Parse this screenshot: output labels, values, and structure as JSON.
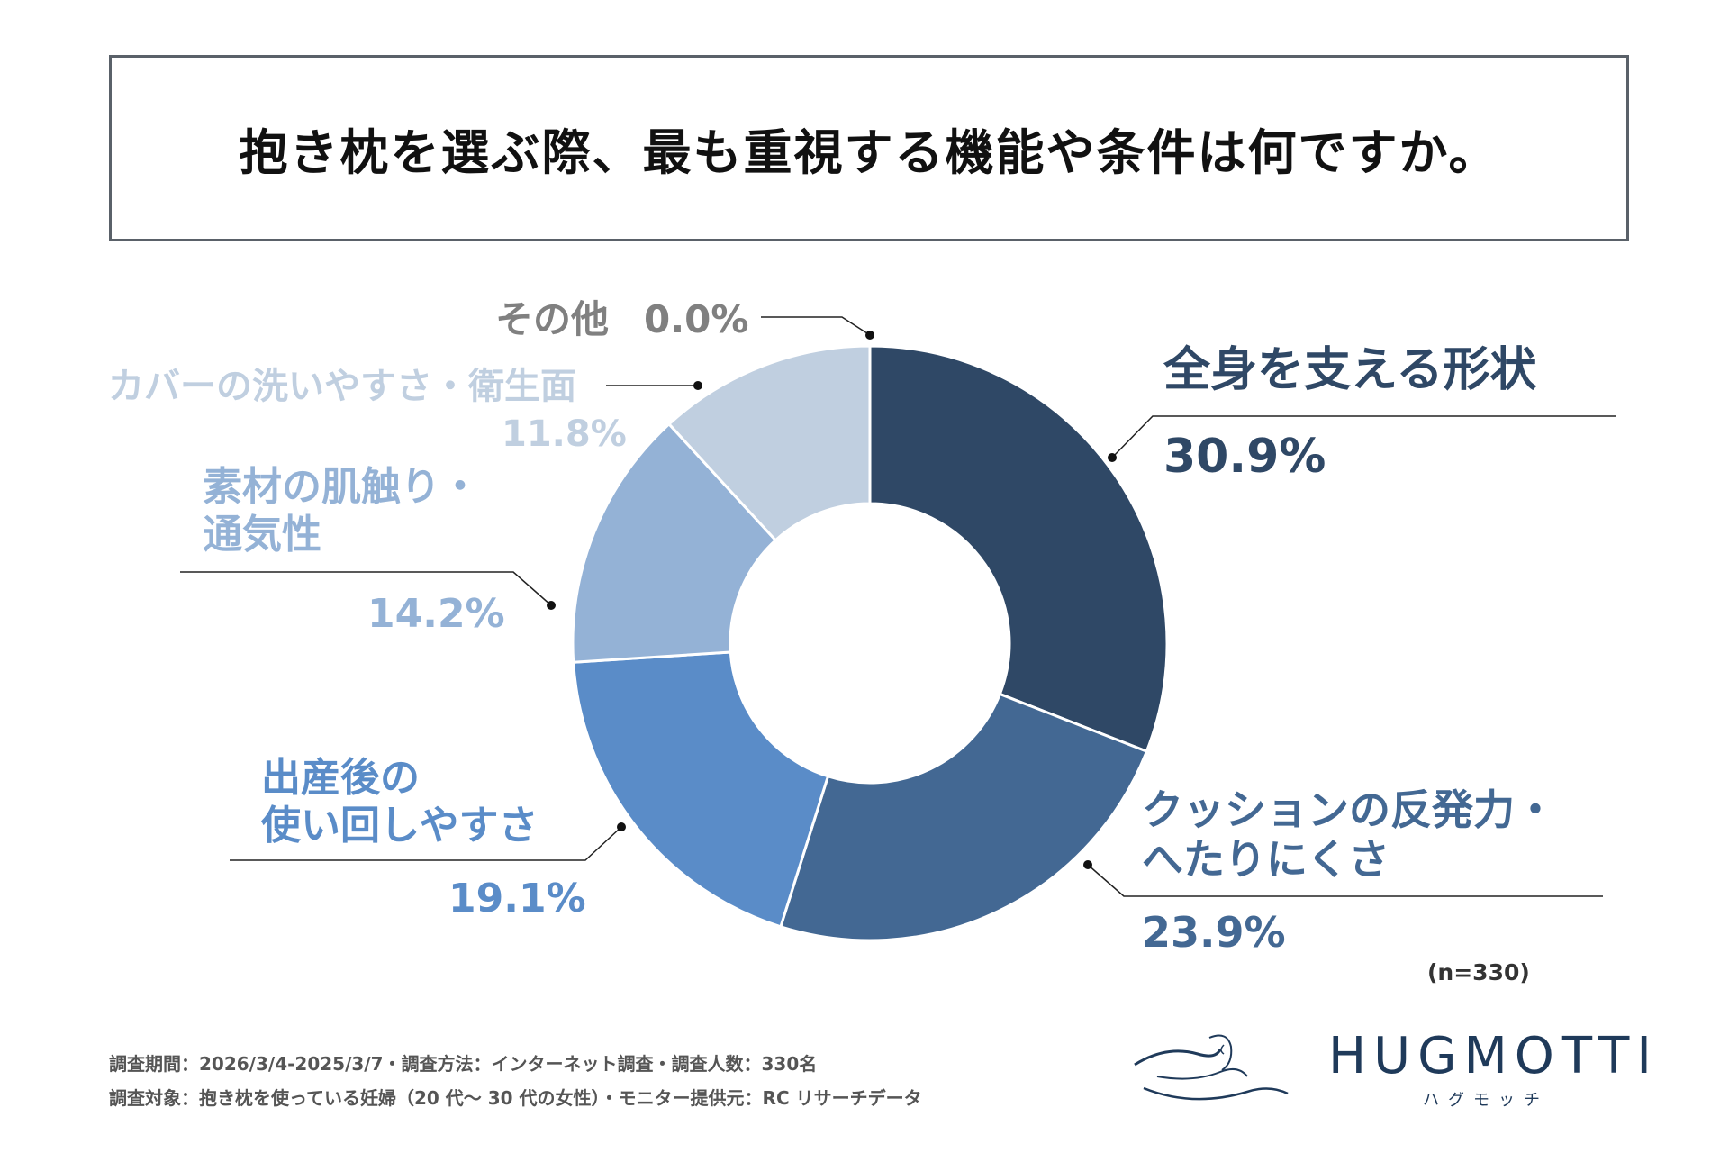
{
  "title": "抱き枕を選ぶ際、最も重視する機能や条件は何ですか。",
  "chart_data": {
    "type": "pie",
    "donut": true,
    "slices": [
      {
        "label": "全身を支える形状",
        "display": "30.9%",
        "value": 30.9,
        "color": "#2f4866"
      },
      {
        "label": "クッションの反発力・へたりにくさ",
        "display": "23.9%",
        "value": 23.9,
        "color": "#436893"
      },
      {
        "label": "出産後の使い回しやすさ",
        "display": "19.1%",
        "value": 19.1,
        "color": "#5a8cc8"
      },
      {
        "label": "素材の肌触り・通気性",
        "display": "14.2%",
        "value": 14.2,
        "color": "#94b2d6"
      },
      {
        "label": "カバーの洗いやすさ・衛生面",
        "display": "11.8%",
        "value": 11.8,
        "color": "#c0cfe0"
      },
      {
        "label": "その他",
        "display": "0.0%",
        "value": 0.0,
        "color": "#808080"
      }
    ]
  },
  "labels": {
    "s1_line1": "全身を支える形状",
    "s2_line1": "クッションの反発力・",
    "s2_line2": "へたりにくさ",
    "s3_line1": "出産後の",
    "s3_line2": "使い回しやすさ",
    "s4_line1": "素材の肌触り・",
    "s4_line2": "通気性",
    "s5_line1": "カバーの洗いやすさ・衛生面",
    "s6_line1": "その他"
  },
  "n_note": "(n=330)",
  "footer": {
    "line1": "調査期間：2026/3/4-2025/3/7・調査方法：インターネット調査・調査人数：330名",
    "line2": "調査対象：抱き枕を使っている妊婦（20 代～ 30 代の女性）・モニター提供元：RC リサーチデータ"
  },
  "brand": {
    "name": "HUGMOTTI",
    "kana": "ハグモッチ"
  }
}
